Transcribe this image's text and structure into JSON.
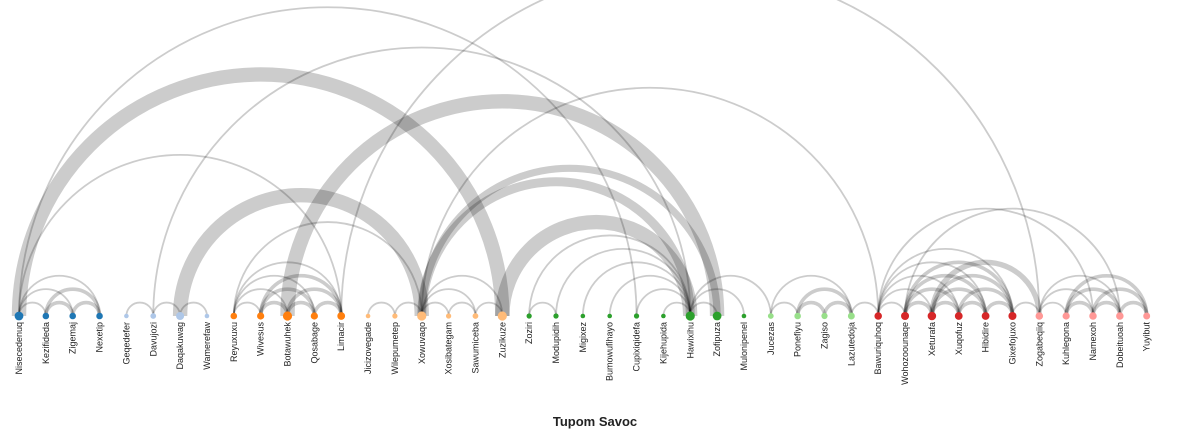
{
  "title": "Tupom Savoc",
  "group_colors": [
    "#1f77b4",
    "#aec7e8",
    "#ff7f0e",
    "#ffbb78",
    "#2ca02c",
    "#98df8a",
    "#d62728",
    "#ff9896"
  ],
  "link_color": "#000000",
  "nodes": [
    {
      "name": "Nisecedenuq",
      "group": 0
    },
    {
      "name": "Kezifideda",
      "group": 0
    },
    {
      "name": "Zigemaj",
      "group": 0
    },
    {
      "name": "Nexetip",
      "group": 0
    },
    {
      "name": "Geqedefer",
      "group": 1
    },
    {
      "name": "Davujozi",
      "group": 1
    },
    {
      "name": "Daqakuwag",
      "group": 1
    },
    {
      "name": "Wamerefaw",
      "group": 1
    },
    {
      "name": "Reyuxuxu",
      "group": 2
    },
    {
      "name": "Wivesus",
      "group": 2
    },
    {
      "name": "Botawuhek",
      "group": 2
    },
    {
      "name": "Qosabage",
      "group": 2
    },
    {
      "name": "Limacir",
      "group": 2
    },
    {
      "name": "Jicizovegade",
      "group": 3
    },
    {
      "name": "Wilepumetep",
      "group": 3
    },
    {
      "name": "Xowuvaqo",
      "group": 3
    },
    {
      "name": "Xosibategam",
      "group": 3
    },
    {
      "name": "Sawumiceba",
      "group": 3
    },
    {
      "name": "Zuzikuze",
      "group": 3
    },
    {
      "name": "Zoziri",
      "group": 4
    },
    {
      "name": "Modupidih",
      "group": 4
    },
    {
      "name": "Migixez",
      "group": 4
    },
    {
      "name": "Bumowufihayo",
      "group": 4
    },
    {
      "name": "Cupixiqidefa",
      "group": 4
    },
    {
      "name": "Kijehupida",
      "group": 4
    },
    {
      "name": "Hawixihu",
      "group": 4
    },
    {
      "name": "Zofipuza",
      "group": 4
    },
    {
      "name": "Mulonipenel",
      "group": 4
    },
    {
      "name": "Jucezas",
      "group": 5
    },
    {
      "name": "Ponefiyu",
      "group": 5
    },
    {
      "name": "Zagiso",
      "group": 5
    },
    {
      "name": "Lazutedoja",
      "group": 5
    },
    {
      "name": "Bawuriquhoq",
      "group": 6
    },
    {
      "name": "Wohozoounaqe",
      "group": 6
    },
    {
      "name": "Xeturafa",
      "group": 6
    },
    {
      "name": "Xuqofuz",
      "group": 6
    },
    {
      "name": "Hibidire",
      "group": 6
    },
    {
      "name": "Gixefojuxo",
      "group": 6
    },
    {
      "name": "Zogabeqiiq",
      "group": 7
    },
    {
      "name": "Kuhlegona",
      "group": 7
    },
    {
      "name": "Namexoh",
      "group": 7
    },
    {
      "name": "Dobeituoah",
      "group": 7
    },
    {
      "name": "Yuyibut",
      "group": 7
    }
  ],
  "links": [
    {
      "source": 0,
      "target": 1,
      "value": 1
    },
    {
      "source": 0,
      "target": 2,
      "value": 1
    },
    {
      "source": 0,
      "target": 3,
      "value": 1
    },
    {
      "source": 1,
      "target": 2,
      "value": 2
    },
    {
      "source": 1,
      "target": 3,
      "value": 2
    },
    {
      "source": 2,
      "target": 3,
      "value": 2
    },
    {
      "source": 0,
      "target": 12,
      "value": 1
    },
    {
      "source": 0,
      "target": 18,
      "value": 8
    },
    {
      "source": 0,
      "target": 23,
      "value": 1
    },
    {
      "source": 4,
      "target": 5,
      "value": 1
    },
    {
      "source": 5,
      "target": 6,
      "value": 1
    },
    {
      "source": 6,
      "target": 7,
      "value": 1
    },
    {
      "source": 5,
      "target": 25,
      "value": 1
    },
    {
      "source": 6,
      "target": 15,
      "value": 8
    },
    {
      "source": 8,
      "target": 9,
      "value": 1
    },
    {
      "source": 8,
      "target": 10,
      "value": 1
    },
    {
      "source": 8,
      "target": 11,
      "value": 1
    },
    {
      "source": 8,
      "target": 12,
      "value": 1
    },
    {
      "source": 9,
      "target": 10,
      "value": 2
    },
    {
      "source": 9,
      "target": 11,
      "value": 2
    },
    {
      "source": 9,
      "target": 12,
      "value": 2
    },
    {
      "source": 10,
      "target": 11,
      "value": 2
    },
    {
      "source": 10,
      "target": 12,
      "value": 2
    },
    {
      "source": 11,
      "target": 12,
      "value": 2
    },
    {
      "source": 8,
      "target": 15,
      "value": 1
    },
    {
      "source": 10,
      "target": 26,
      "value": 8
    },
    {
      "source": 12,
      "target": 38,
      "value": 1
    },
    {
      "source": 13,
      "target": 14,
      "value": 1
    },
    {
      "source": 14,
      "target": 15,
      "value": 1
    },
    {
      "source": 15,
      "target": 16,
      "value": 1
    },
    {
      "source": 15,
      "target": 17,
      "value": 1
    },
    {
      "source": 15,
      "target": 18,
      "value": 1
    },
    {
      "source": 16,
      "target": 17,
      "value": 1
    },
    {
      "source": 17,
      "target": 18,
      "value": 1
    },
    {
      "source": 15,
      "target": 25,
      "value": 5
    },
    {
      "source": 15,
      "target": 26,
      "value": 4
    },
    {
      "source": 15,
      "target": 32,
      "value": 1
    },
    {
      "source": 18,
      "target": 25,
      "value": 8
    },
    {
      "source": 19,
      "target": 20,
      "value": 1
    },
    {
      "source": 19,
      "target": 25,
      "value": 1
    },
    {
      "source": 20,
      "target": 25,
      "value": 1
    },
    {
      "source": 21,
      "target": 25,
      "value": 1
    },
    {
      "source": 22,
      "target": 25,
      "value": 1
    },
    {
      "source": 23,
      "target": 25,
      "value": 1
    },
    {
      "source": 24,
      "target": 25,
      "value": 1
    },
    {
      "source": 25,
      "target": 26,
      "value": 1
    },
    {
      "source": 25,
      "target": 27,
      "value": 1
    },
    {
      "source": 25,
      "target": 28,
      "value": 1
    },
    {
      "source": 28,
      "target": 29,
      "value": 1
    },
    {
      "source": 28,
      "target": 31,
      "value": 1
    },
    {
      "source": 29,
      "target": 30,
      "value": 2
    },
    {
      "source": 29,
      "target": 31,
      "value": 2
    },
    {
      "source": 30,
      "target": 31,
      "value": 2
    },
    {
      "source": 31,
      "target": 32,
      "value": 1
    },
    {
      "source": 32,
      "target": 33,
      "value": 1
    },
    {
      "source": 32,
      "target": 34,
      "value": 1
    },
    {
      "source": 32,
      "target": 35,
      "value": 1
    },
    {
      "source": 32,
      "target": 36,
      "value": 1
    },
    {
      "source": 32,
      "target": 37,
      "value": 1
    },
    {
      "source": 32,
      "target": 40,
      "value": 1
    },
    {
      "source": 33,
      "target": 34,
      "value": 2
    },
    {
      "source": 33,
      "target": 35,
      "value": 2
    },
    {
      "source": 33,
      "target": 36,
      "value": 2
    },
    {
      "source": 33,
      "target": 37,
      "value": 2
    },
    {
      "source": 34,
      "target": 35,
      "value": 2
    },
    {
      "source": 34,
      "target": 36,
      "value": 2
    },
    {
      "source": 34,
      "target": 37,
      "value": 2
    },
    {
      "source": 35,
      "target": 36,
      "value": 2
    },
    {
      "source": 35,
      "target": 37,
      "value": 2
    },
    {
      "source": 36,
      "target": 37,
      "value": 2
    },
    {
      "source": 33,
      "target": 41,
      "value": 1
    },
    {
      "source": 34,
      "target": 38,
      "value": 3
    },
    {
      "source": 37,
      "target": 38,
      "value": 1
    },
    {
      "source": 38,
      "target": 39,
      "value": 1
    },
    {
      "source": 38,
      "target": 40,
      "value": 1
    },
    {
      "source": 38,
      "target": 41,
      "value": 1
    },
    {
      "source": 39,
      "target": 40,
      "value": 2
    },
    {
      "source": 39,
      "target": 41,
      "value": 2
    },
    {
      "source": 39,
      "target": 42,
      "value": 2
    },
    {
      "source": 40,
      "target": 41,
      "value": 2
    },
    {
      "source": 40,
      "target": 42,
      "value": 2
    },
    {
      "source": 41,
      "target": 42,
      "value": 2
    }
  ]
}
